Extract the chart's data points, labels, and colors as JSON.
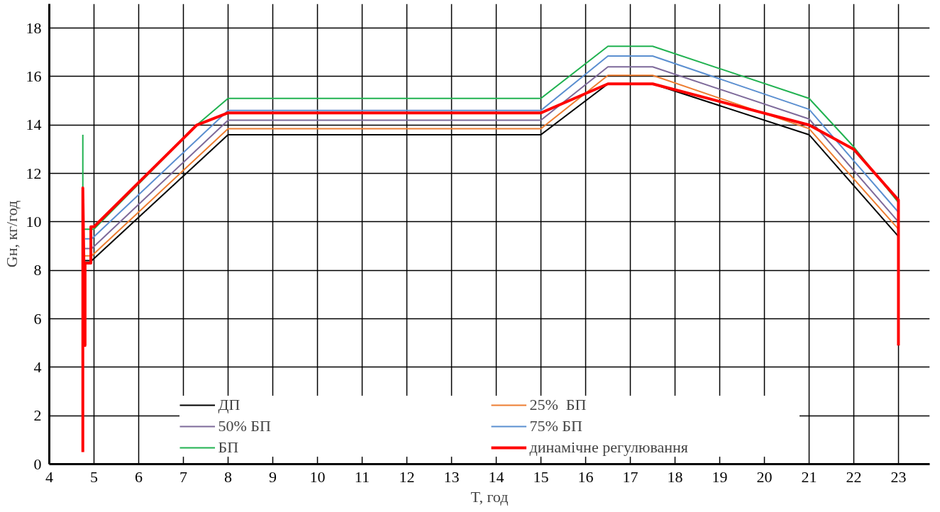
{
  "chart_data": {
    "type": "line",
    "xlabel": "T, год",
    "ylabel": "Gн, кг/год",
    "xlim": [
      4,
      23.7
    ],
    "ylim": [
      0,
      19
    ],
    "xticks": [
      4,
      5,
      6,
      7,
      8,
      9,
      10,
      11,
      12,
      13,
      14,
      15,
      16,
      17,
      18,
      19,
      20,
      21,
      22,
      23
    ],
    "yticks": [
      0,
      2,
      4,
      6,
      8,
      10,
      12,
      14,
      16,
      18
    ],
    "grid": true,
    "legend": "bottom",
    "line_style": "solid",
    "marker": "none",
    "series": [
      {
        "name": "ДП",
        "color": "#000000",
        "x": [
          4.8,
          4.95,
          8,
          15,
          16.5,
          17.5,
          21,
          23
        ],
        "values": [
          8.4,
          8.4,
          13.6,
          13.6,
          15.7,
          15.7,
          13.6,
          9.4
        ]
      },
      {
        "name": "25%  БП",
        "color": "#ed7d31",
        "x": [
          4.8,
          4.95,
          8,
          15,
          16.5,
          17.5,
          21,
          23
        ],
        "values": [
          8.6,
          8.6,
          13.85,
          13.85,
          16.05,
          16.05,
          13.85,
          9.7
        ]
      },
      {
        "name": "50% БП",
        "color": "#7e6a9a",
        "x": [
          4.8,
          4.95,
          8,
          15,
          16.5,
          17.5,
          21,
          23
        ],
        "values": [
          8.9,
          8.9,
          14.2,
          14.2,
          16.4,
          16.4,
          14.25,
          10.0
        ]
      },
      {
        "name": "75% БП",
        "color": "#5b8fd0",
        "x": [
          4.8,
          4.95,
          8,
          15,
          16.5,
          17.5,
          21,
          23
        ],
        "values": [
          9.3,
          9.3,
          14.6,
          14.6,
          16.85,
          16.85,
          14.65,
          10.4
        ]
      },
      {
        "name": "БП",
        "color": "#21b251",
        "x": [
          4.75,
          4.75,
          5.0,
          7.3,
          8,
          15,
          16.5,
          17.5,
          21,
          22,
          23,
          23
        ],
        "values": [
          13.6,
          9.7,
          9.7,
          14.0,
          15.1,
          15.1,
          17.25,
          17.25,
          15.1,
          13.1,
          10.8,
          9.5
        ]
      },
      {
        "name": "динамічне регулювання",
        "color": "#ff0000",
        "x": [
          4.75,
          4.75,
          4.8,
          4.8,
          4.93,
          4.93,
          5.0,
          7.3,
          8,
          15,
          16.5,
          17.5,
          21,
          22,
          23,
          23
        ],
        "values": [
          0.5,
          11.4,
          4.9,
          8.3,
          8.3,
          9.8,
          9.8,
          14.0,
          14.5,
          14.5,
          15.7,
          15.7,
          14.0,
          13.0,
          10.9,
          4.9
        ]
      }
    ]
  }
}
